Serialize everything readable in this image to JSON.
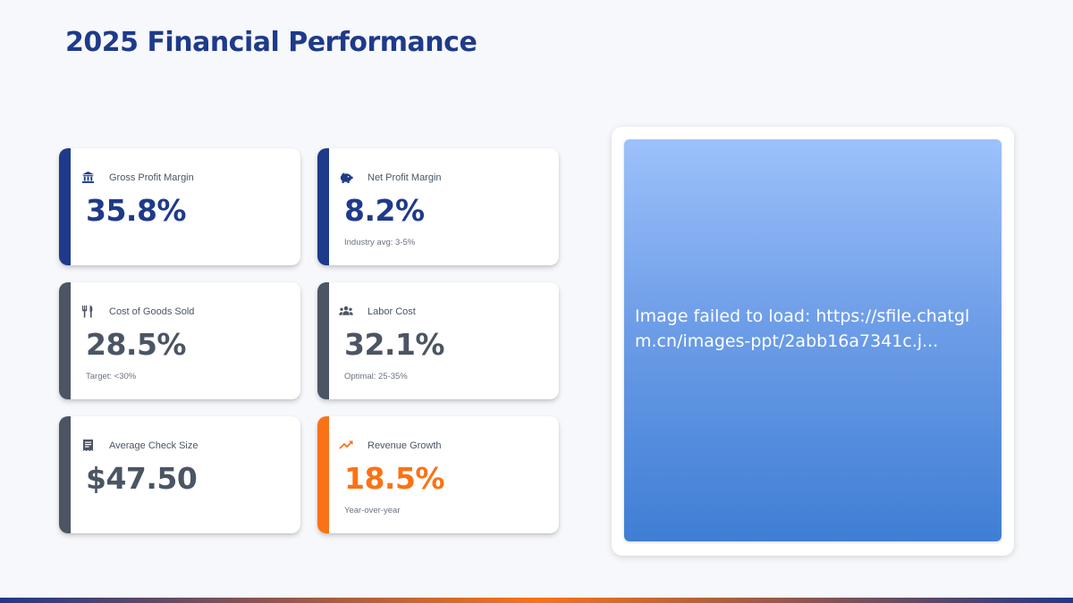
{
  "page": {
    "title": "2025 Financial Performance"
  },
  "colors": {
    "primary": "#1e3a8a",
    "neutral": "#4b5563",
    "accent": "#f97316",
    "background": "#f7f8fb"
  },
  "metrics": [
    {
      "label": "Gross Profit Margin",
      "value": "35.8%",
      "sub": "",
      "icon": "bank-icon",
      "accent": "#1e3a8a"
    },
    {
      "label": "Net Profit Margin",
      "value": "8.2%",
      "sub": "Industry avg: 3-5%",
      "icon": "piggy-bank-icon",
      "accent": "#1e3a8a"
    },
    {
      "label": "Cost of Goods Sold",
      "value": "28.5%",
      "sub": "Target: <30%",
      "icon": "utensils-icon",
      "accent": "#4b5563"
    },
    {
      "label": "Labor Cost",
      "value": "32.1%",
      "sub": "Optimal: 25-35%",
      "icon": "users-icon",
      "accent": "#4b5563"
    },
    {
      "label": "Average Check Size",
      "value": "$47.50",
      "sub": "",
      "icon": "receipt-icon",
      "accent": "#4b5563"
    },
    {
      "label": "Revenue Growth",
      "value": "18.5%",
      "sub": "Year-over-year",
      "icon": "trend-up-icon",
      "accent": "#f97316"
    }
  ],
  "image": {
    "error_text": "Image failed to load: https://sfile.chatglm.cn/images-ppt/2abb16a7341c.j..."
  }
}
